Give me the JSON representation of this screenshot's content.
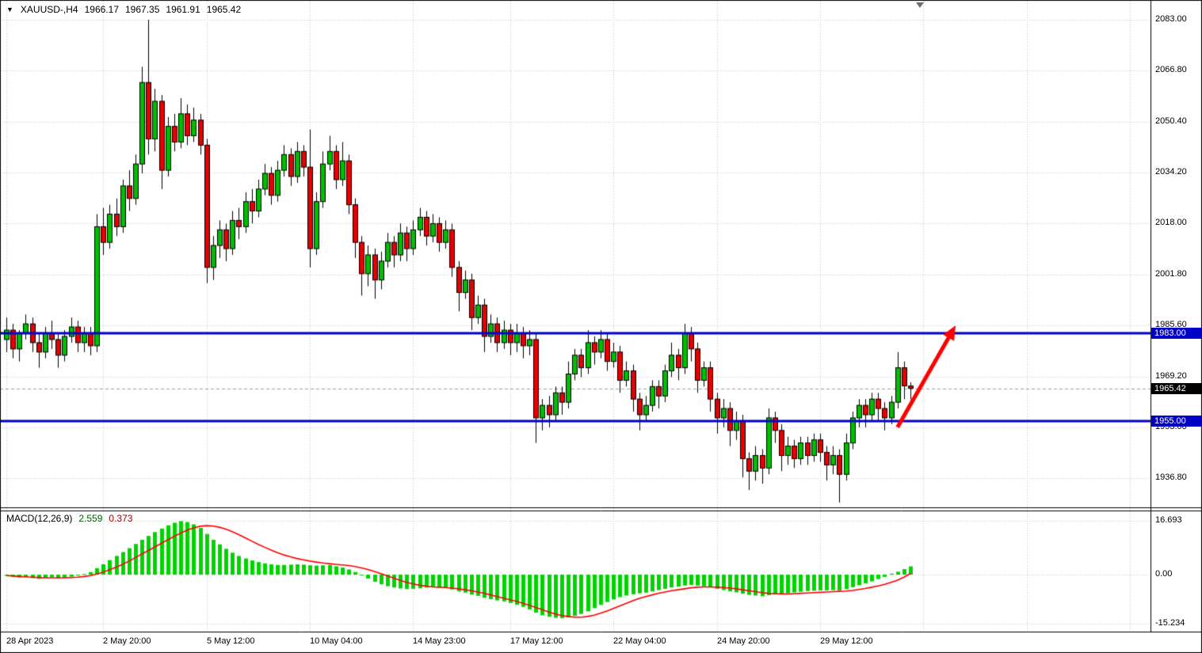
{
  "header": {
    "dropdown_icon": "▼",
    "symbol_period": "XAUUSD-,H4",
    "open": "1966.17",
    "high": "1967.35",
    "low": "1961.91",
    "close": "1965.42"
  },
  "indicator_label": {
    "name": "MACD(12,26,9)",
    "main_value": "2.559",
    "signal_value": "0.373"
  },
  "price_axis": {
    "ticks": [
      {
        "label": "2083.00",
        "value": 2083.0
      },
      {
        "label": "2066.80",
        "value": 2066.8
      },
      {
        "label": "2050.40",
        "value": 2050.4
      },
      {
        "label": "2034.20",
        "value": 2034.2
      },
      {
        "label": "2018.00",
        "value": 2018.0
      },
      {
        "label": "2001.80",
        "value": 2001.8
      },
      {
        "label": "1985.60",
        "value": 1985.6
      },
      {
        "label": "1969.20",
        "value": 1969.2
      },
      {
        "label": "1953.00",
        "value": 1953.0
      },
      {
        "label": "1936.80",
        "value": 1936.8
      }
    ]
  },
  "macd_axis": {
    "ticks": [
      {
        "label": "16.693",
        "value": 16.693
      },
      {
        "label": "0.00",
        "value": 0
      },
      {
        "label": "-15.234",
        "value": -15.234
      }
    ]
  },
  "time_axis": {
    "ticks": [
      {
        "label": "28 Apr 2023",
        "bar": 0
      },
      {
        "label": "2 May 20:00",
        "bar": 15
      },
      {
        "label": "5 May 12:00",
        "bar": 31
      },
      {
        "label": "10 May 04:00",
        "bar": 47
      },
      {
        "label": "14 May 23:00",
        "bar": 63
      },
      {
        "label": "17 May 12:00",
        "bar": 78
      },
      {
        "label": "22 May 04:00",
        "bar": 94
      },
      {
        "label": "24 May 20:00",
        "bar": 110
      },
      {
        "label": "29 May 12:00",
        "bar": 126
      }
    ]
  },
  "levels": [
    {
      "label": "1983.00",
      "price": 1983.0,
      "color": "#0000C8"
    },
    {
      "label": "1955.00",
      "price": 1955.0,
      "color": "#0000C8"
    }
  ],
  "current_price": {
    "label": "1965.42",
    "value": 1965.42,
    "tag_bg": "#000000",
    "line_color": "#8CA8A8"
  },
  "annotations": [
    {
      "type": "arrow",
      "color": "#FF0000",
      "width": 5,
      "from": {
        "bar": 138,
        "price": 1953.0
      },
      "to": {
        "bar": 147,
        "price": 1985.5
      }
    }
  ],
  "colors": {
    "grid": "#C8C8C8",
    "up": "#00BE00",
    "down": "#E80000",
    "candle_outline": "#000000",
    "histogram": "#00D400",
    "signal_line": "#FF0000",
    "axis_text": "#000000",
    "border": "#000000",
    "marker": "#6E6E6E"
  },
  "chart_data": {
    "type": "candlestick",
    "title": "XAUUSD-,H4 with MACD(12,26,9)",
    "symbol": "XAUUSD-",
    "timeframe": "H4",
    "price_ylim": [
      1936.8,
      2083.0
    ],
    "macd_ylim": [
      -15.234,
      16.693
    ],
    "bars": 141,
    "candles": [
      [
        1981,
        1988,
        1977,
        1984
      ],
      [
        1984,
        1986,
        1975,
        1978
      ],
      [
        1978,
        1984,
        1974,
        1983
      ],
      [
        1983,
        1989,
        1981,
        1986
      ],
      [
        1986,
        1988,
        1977,
        1980
      ],
      [
        1980,
        1983,
        1972,
        1977
      ],
      [
        1977,
        1985,
        1975,
        1983
      ],
      [
        1983,
        1987,
        1978,
        1981
      ],
      [
        1981,
        1983,
        1972,
        1976
      ],
      [
        1976,
        1984,
        1974,
        1982
      ],
      [
        1982,
        1988,
        1980,
        1985
      ],
      [
        1985,
        1987,
        1977,
        1980
      ],
      [
        1980,
        1985,
        1977,
        1983
      ],
      [
        1983,
        1985,
        1976,
        1979
      ],
      [
        1979,
        2021,
        1977,
        2017
      ],
      [
        2017,
        2023,
        2008,
        2012
      ],
      [
        2012,
        2024,
        2010,
        2021
      ],
      [
        2021,
        2026,
        2014,
        2017
      ],
      [
        2017,
        2032,
        2015,
        2030
      ],
      [
        2030,
        2035,
        2022,
        2026
      ],
      [
        2026,
        2040,
        2024,
        2037
      ],
      [
        2037,
        2068,
        2034,
        2063
      ],
      [
        2063,
        2083,
        2040,
        2045
      ],
      [
        2045,
        2061,
        2041,
        2057
      ],
      [
        2057,
        2059,
        2029,
        2035
      ],
      [
        2035,
        2052,
        2033,
        2049
      ],
      [
        2049,
        2053,
        2041,
        2044
      ],
      [
        2044,
        2058,
        2042,
        2053
      ],
      [
        2053,
        2056,
        2043,
        2046
      ],
      [
        2046,
        2055,
        2044,
        2051
      ],
      [
        2051,
        2053,
        2040,
        2043
      ],
      [
        2043,
        2045,
        1999,
        2004
      ],
      [
        2004,
        2014,
        2000,
        2011
      ],
      [
        2011,
        2019,
        2007,
        2016
      ],
      [
        2016,
        2018,
        2006,
        2010
      ],
      [
        2010,
        2022,
        2008,
        2019
      ],
      [
        2019,
        2023,
        2013,
        2017
      ],
      [
        2017,
        2028,
        2015,
        2025
      ],
      [
        2025,
        2029,
        2018,
        2022
      ],
      [
        2022,
        2032,
        2020,
        2029
      ],
      [
        2029,
        2037,
        2027,
        2034
      ],
      [
        2034,
        2036,
        2024,
        2027
      ],
      [
        2027,
        2038,
        2025,
        2035
      ],
      [
        2035,
        2043,
        2033,
        2040
      ],
      [
        2040,
        2042,
        2030,
        2033
      ],
      [
        2033,
        2044,
        2031,
        2041
      ],
      [
        2041,
        2043,
        2033,
        2036
      ],
      [
        2036,
        2048,
        2004,
        2010
      ],
      [
        2010,
        2028,
        2008,
        2025
      ],
      [
        2025,
        2041,
        2023,
        2037
      ],
      [
        2037,
        2046,
        2035,
        2041
      ],
      [
        2041,
        2043,
        2029,
        2032
      ],
      [
        2032,
        2044,
        2030,
        2038
      ],
      [
        2038,
        2040,
        2021,
        2024
      ],
      [
        2024,
        2026,
        2007,
        2012
      ],
      [
        2012,
        2014,
        1995,
        2002
      ],
      [
        2002,
        2011,
        1998,
        2008
      ],
      [
        2008,
        2010,
        1994,
        2000
      ],
      [
        2000,
        2009,
        1997,
        2006
      ],
      [
        2006,
        2015,
        2004,
        2012
      ],
      [
        2012,
        2014,
        2004,
        2008
      ],
      [
        2008,
        2018,
        2006,
        2015
      ],
      [
        2015,
        2017,
        2006,
        2010
      ],
      [
        2010,
        2019,
        2008,
        2016
      ],
      [
        2016,
        2023,
        2014,
        2020
      ],
      [
        2020,
        2022,
        2011,
        2014
      ],
      [
        2014,
        2021,
        2012,
        2018
      ],
      [
        2018,
        2020,
        2009,
        2012
      ],
      [
        2012,
        2019,
        2010,
        2016
      ],
      [
        2016,
        2018,
        2001,
        2004
      ],
      [
        2004,
        2006,
        1990,
        1996
      ],
      [
        1996,
        2003,
        1994,
        2000
      ],
      [
        2000,
        2002,
        1984,
        1988
      ],
      [
        1988,
        1995,
        1986,
        1992
      ],
      [
        1992,
        1994,
        1977,
        1982
      ],
      [
        1982,
        1989,
        1980,
        1986
      ],
      [
        1986,
        1988,
        1977,
        1980
      ],
      [
        1980,
        1987,
        1978,
        1984
      ],
      [
        1984,
        1986,
        1976,
        1980
      ],
      [
        1980,
        1986,
        1977,
        1983
      ],
      [
        1983,
        1985,
        1975,
        1979
      ],
      [
        1979,
        1984,
        1976,
        1981
      ],
      [
        1981,
        1983,
        1948,
        1956
      ],
      [
        1956,
        1962,
        1952,
        1960
      ],
      [
        1960,
        1963,
        1953,
        1957
      ],
      [
        1957,
        1966,
        1955,
        1964
      ],
      [
        1964,
        1966,
        1957,
        1961
      ],
      [
        1961,
        1974,
        1959,
        1970
      ],
      [
        1970,
        1978,
        1968,
        1976
      ],
      [
        1976,
        1978,
        1969,
        1972
      ],
      [
        1972,
        1984,
        1970,
        1980
      ],
      [
        1980,
        1982,
        1973,
        1977
      ],
      [
        1977,
        1984,
        1975,
        1981
      ],
      [
        1981,
        1983,
        1971,
        1974
      ],
      [
        1974,
        1980,
        1972,
        1977
      ],
      [
        1977,
        1979,
        1964,
        1968
      ],
      [
        1968,
        1974,
        1966,
        1971
      ],
      [
        1971,
        1973,
        1958,
        1962
      ],
      [
        1962,
        1964,
        1952,
        1957
      ],
      [
        1957,
        1963,
        1955,
        1960
      ],
      [
        1960,
        1968,
        1958,
        1966
      ],
      [
        1966,
        1968,
        1959,
        1963
      ],
      [
        1963,
        1973,
        1961,
        1971
      ],
      [
        1971,
        1980,
        1969,
        1976
      ],
      [
        1976,
        1978,
        1968,
        1972
      ],
      [
        1972,
        1986,
        1970,
        1983
      ],
      [
        1983,
        1985,
        1974,
        1978
      ],
      [
        1978,
        1980,
        1964,
        1968
      ],
      [
        1968,
        1974,
        1966,
        1972
      ],
      [
        1972,
        1974,
        1958,
        1962
      ],
      [
        1962,
        1964,
        1951,
        1956
      ],
      [
        1956,
        1962,
        1953,
        1959
      ],
      [
        1959,
        1961,
        1947,
        1952
      ],
      [
        1952,
        1958,
        1949,
        1955
      ],
      [
        1955,
        1957,
        1937,
        1943
      ],
      [
        1943,
        1945,
        1933,
        1939
      ],
      [
        1939,
        1947,
        1936,
        1944
      ],
      [
        1944,
        1946,
        1935,
        1940
      ],
      [
        1940,
        1959,
        1938,
        1956
      ],
      [
        1956,
        1958,
        1948,
        1952
      ],
      [
        1952,
        1954,
        1939,
        1944
      ],
      [
        1944,
        1950,
        1941,
        1947
      ],
      [
        1947,
        1949,
        1940,
        1943
      ],
      [
        1943,
        1950,
        1941,
        1948
      ],
      [
        1948,
        1950,
        1941,
        1944
      ],
      [
        1944,
        1951,
        1942,
        1949
      ],
      [
        1949,
        1951,
        1942,
        1945
      ],
      [
        1945,
        1947,
        1936,
        1941
      ],
      [
        1941,
        1947,
        1938,
        1944
      ],
      [
        1944,
        1946,
        1929,
        1938
      ],
      [
        1938,
        1951,
        1936,
        1948
      ],
      [
        1948,
        1958,
        1946,
        1956
      ],
      [
        1956,
        1962,
        1953,
        1960
      ],
      [
        1960,
        1962,
        1953,
        1957
      ],
      [
        1957,
        1964,
        1955,
        1962
      ],
      [
        1962,
        1964,
        1955,
        1959
      ],
      [
        1959,
        1961,
        1952,
        1956
      ],
      [
        1956,
        1963,
        1954,
        1961
      ],
      [
        1961,
        1977,
        1959,
        1972
      ],
      [
        1972,
        1974,
        1962,
        1966.2
      ],
      [
        1966.17,
        1967.35,
        1961.91,
        1965.42
      ]
    ],
    "macd": {
      "main": [
        -0.4,
        -0.7,
        -0.9,
        -0.8,
        -1.1,
        -1.3,
        -1.0,
        -0.8,
        -1.1,
        -0.9,
        -0.6,
        -0.3,
        0.2,
        0.8,
        2.0,
        3.2,
        4.5,
        5.8,
        7.0,
        8.2,
        9.5,
        10.8,
        12.0,
        13.2,
        14.3,
        15.3,
        16.1,
        16.6,
        16.3,
        15.6,
        14.5,
        12.6,
        10.8,
        9.4,
        8.0,
        6.8,
        5.8,
        5.0,
        4.4,
        3.9,
        3.5,
        3.2,
        3.0,
        3.0,
        3.1,
        3.2,
        3.1,
        2.9,
        2.8,
        2.9,
        3.0,
        2.6,
        2.2,
        1.6,
        0.8,
        -0.2,
        -1.2,
        -2.2,
        -3.0,
        -3.6,
        -4.0,
        -4.3,
        -4.5,
        -4.4,
        -4.2,
        -4.0,
        -3.9,
        -4.0,
        -4.1,
        -4.6,
        -5.2,
        -5.6,
        -6.2,
        -6.6,
        -7.2,
        -7.6,
        -8.0,
        -8.3,
        -8.8,
        -9.4,
        -10.0,
        -10.8,
        -11.8,
        -12.6,
        -13.1,
        -13.4,
        -13.5,
        -13.3,
        -12.8,
        -12.2,
        -11.4,
        -10.4,
        -9.4,
        -8.5,
        -7.7,
        -7.0,
        -6.5,
        -6.1,
        -5.8,
        -5.6,
        -5.2,
        -4.8,
        -4.4,
        -4.0,
        -3.7,
        -3.4,
        -3.2,
        -3.4,
        -3.6,
        -4.0,
        -4.4,
        -4.8,
        -5.2,
        -5.5,
        -5.9,
        -6.3,
        -6.5,
        -6.7,
        -6.4,
        -6.1,
        -5.9,
        -5.7,
        -5.5,
        -5.3,
        -5.1,
        -5.0,
        -4.9,
        -4.9,
        -4.8,
        -4.9,
        -4.5,
        -3.9,
        -3.3,
        -2.7,
        -2.1,
        -1.4,
        -0.7,
        0.3,
        0.9,
        1.7,
        2.559
      ],
      "signal": [
        -0.3,
        -0.4,
        -0.6,
        -0.7,
        -0.8,
        -0.9,
        -1.0,
        -1.0,
        -1.0,
        -1.0,
        -0.9,
        -0.8,
        -0.6,
        -0.3,
        0.2,
        0.8,
        1.5,
        2.3,
        3.2,
        4.2,
        5.3,
        6.4,
        7.5,
        8.6,
        9.7,
        10.8,
        11.9,
        12.9,
        13.8,
        14.5,
        15.0,
        15.2,
        15.1,
        14.7,
        14.1,
        13.3,
        12.4,
        11.4,
        10.4,
        9.4,
        8.5,
        7.6,
        6.8,
        6.1,
        5.5,
        5.0,
        4.6,
        4.2,
        3.9,
        3.6,
        3.4,
        3.2,
        3.0,
        2.8,
        2.5,
        2.1,
        1.6,
        1.0,
        0.3,
        -0.4,
        -1.1,
        -1.8,
        -2.4,
        -2.9,
        -3.3,
        -3.6,
        -3.8,
        -3.9,
        -4.0,
        -4.2,
        -4.4,
        -4.7,
        -5.0,
        -5.4,
        -5.8,
        -6.3,
        -6.8,
        -7.3,
        -7.8,
        -8.3,
        -8.9,
        -9.5,
        -10.2,
        -10.9,
        -11.6,
        -12.2,
        -12.7,
        -13.0,
        -13.2,
        -13.2,
        -13.0,
        -12.6,
        -12.0,
        -11.3,
        -10.5,
        -9.7,
        -8.9,
        -8.1,
        -7.4,
        -6.8,
        -6.3,
        -5.8,
        -5.4,
        -5.0,
        -4.7,
        -4.4,
        -4.1,
        -3.9,
        -3.8,
        -3.8,
        -3.9,
        -4.0,
        -4.2,
        -4.4,
        -4.7,
        -5.0,
        -5.3,
        -5.6,
        -5.8,
        -5.9,
        -6.0,
        -6.0,
        -5.9,
        -5.8,
        -5.7,
        -5.6,
        -5.5,
        -5.4,
        -5.3,
        -5.2,
        -5.1,
        -4.9,
        -4.6,
        -4.3,
        -3.9,
        -3.5,
        -3.0,
        -2.4,
        -1.7,
        -0.8,
        0.373
      ]
    }
  }
}
